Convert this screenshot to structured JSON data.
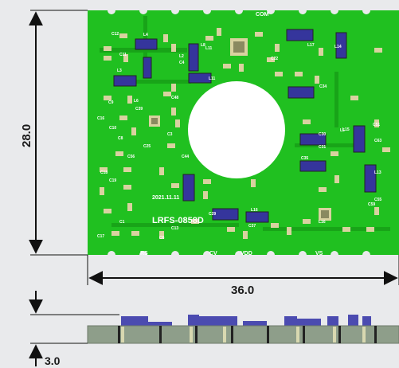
{
  "dimensions": {
    "height": "28.0",
    "width": "36.0",
    "thickness": "3.0"
  },
  "pcb": {
    "date": "2021.11.11",
    "model": "LRFS-0858D",
    "pins": [
      "COM",
      "RS",
      "CV",
      "VDD",
      "VS"
    ]
  },
  "labels": {
    "refdes": [
      "C12",
      "L4",
      "L11",
      "C11",
      "L2",
      "L3",
      "C9",
      "L6",
      "C10",
      "L11",
      "C3",
      "C17",
      "L8",
      "C8",
      "C13",
      "L14",
      "C22",
      "L17",
      "L16",
      "C37",
      "C29",
      "C30",
      "C31",
      "L15",
      "C34",
      "C35",
      "C51",
      "L5",
      "C55",
      "C63",
      "L13",
      "C59",
      "L16",
      "C1",
      "C4",
      "C25",
      "C44",
      "C39",
      "C48",
      "C16",
      "C56",
      "C18",
      "C19",
      "C6"
    ]
  },
  "colors": {
    "board": "#20c020",
    "board_dark": "#18a418",
    "pad": "#d9d2a0",
    "inductor": "#35359c",
    "hole": "#ffffff",
    "side_body": "#8e9e8a",
    "side_component": "#4b4bb0",
    "dimension_line": "#111111"
  }
}
